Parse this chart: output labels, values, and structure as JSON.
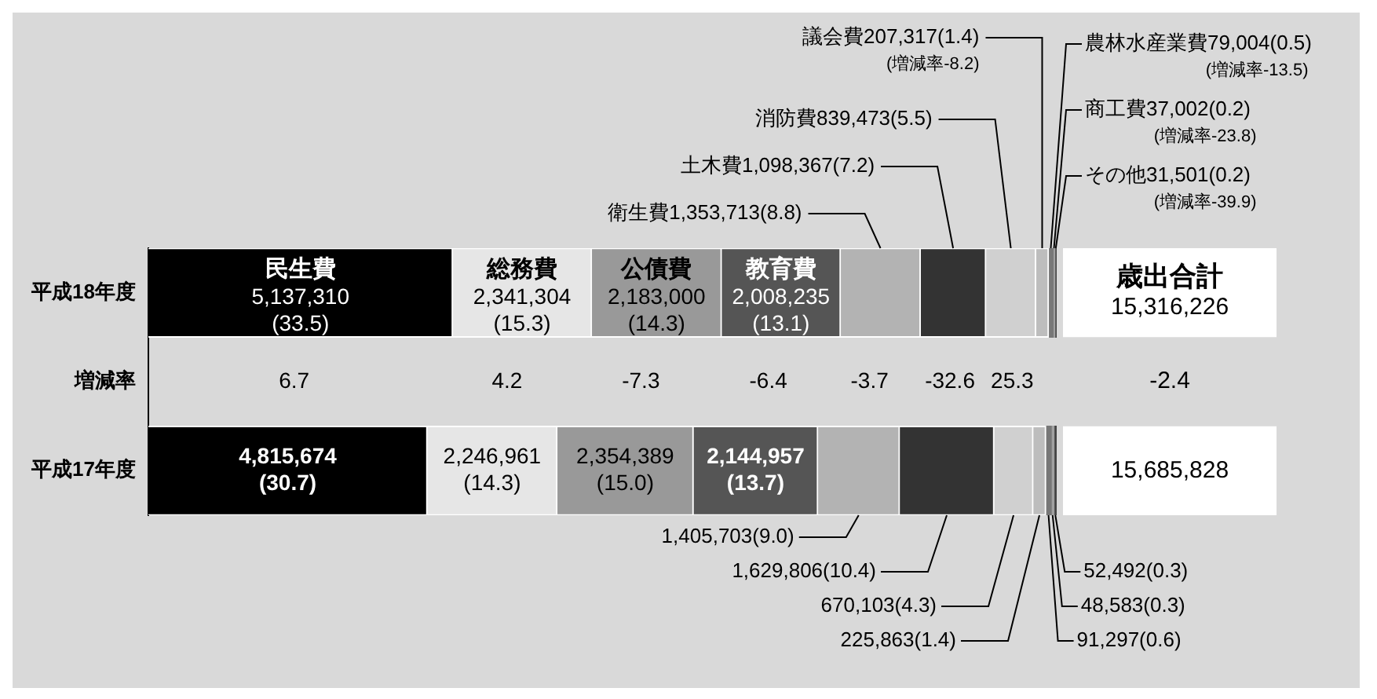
{
  "chart_data": {
    "type": "bar",
    "orientation": "horizontal",
    "stacked": true,
    "tick_labels": "y",
    "grid": false,
    "legend": false,
    "categories": [
      "平成18年度",
      "増減率",
      "平成17年度"
    ],
    "series": [
      {
        "name": "民生費",
        "color": "#000000",
        "values": [
          33.5,
          null,
          30.7
        ],
        "value_labels": [
          "5,137,310\n(33.5)",
          "6.7",
          "4,815,674\n(30.7)"
        ]
      },
      {
        "name": "総務費",
        "color": "#e6e6e6",
        "values": [
          15.3,
          null,
          14.3
        ],
        "value_labels": [
          "2,341,304\n(15.3)",
          "4.2",
          "2,246,961\n(14.3)"
        ]
      },
      {
        "name": "公債費",
        "color": "#999999",
        "values": [
          14.3,
          null,
          15.0
        ],
        "value_labels": [
          "2,183,000\n(14.3)",
          "-7.3",
          "2,354,389\n(15.0)"
        ]
      },
      {
        "name": "教育費",
        "color": "#555555",
        "values": [
          13.1,
          null,
          13.7
        ],
        "value_labels": [
          "2,008,235\n(13.1)",
          "-6.4",
          "2,144,957\n(13.7)"
        ]
      },
      {
        "name": "衛生費",
        "color": "#b3b3b3",
        "values": [
          8.8,
          null,
          9.0
        ],
        "value_labels": [
          "1,353,713(8.8)",
          "-3.7",
          "1,405,703(9.0)"
        ]
      },
      {
        "name": "土木費",
        "color": "#333333",
        "values": [
          7.2,
          null,
          10.4
        ],
        "value_labels": [
          "1,098,367(7.2)",
          "-32.6",
          "1,629,806(10.4)"
        ]
      },
      {
        "name": "消防費",
        "color": "#d0d0d0",
        "values": [
          5.5,
          null,
          4.3
        ],
        "value_labels": [
          "839,473(5.5)",
          "25.3",
          "670,103(4.3)"
        ]
      },
      {
        "name": "議会費",
        "color": "#bdbdbd",
        "values": [
          1.4,
          null,
          1.4
        ],
        "value_labels": [
          "207,317(1.4)",
          "(増減率-8.2)",
          "225,863(1.4)"
        ]
      },
      {
        "name": "農林水産業費",
        "color": "#777777",
        "values": [
          0.5,
          null,
          0.6
        ],
        "value_labels": [
          "79,004(0.5)",
          "(増減率-13.5)",
          "91,297(0.6)"
        ]
      },
      {
        "name": "商工費",
        "color": "#a0a0a0",
        "values": [
          0.2,
          null,
          0.3
        ],
        "value_labels": [
          "37,002(0.2)",
          "(増減率-23.8)",
          "48,583(0.3)"
        ]
      },
      {
        "name": "その他",
        "color": "#444444",
        "values": [
          0.2,
          null,
          0.3
        ],
        "value_labels": [
          "31,501(0.2)",
          "(増減率-39.9)",
          "52,492(0.3)"
        ]
      }
    ],
    "annotations": [
      "歳出合計\n15,316,226",
      "-2.4",
      "15,685,828"
    ]
  }
}
